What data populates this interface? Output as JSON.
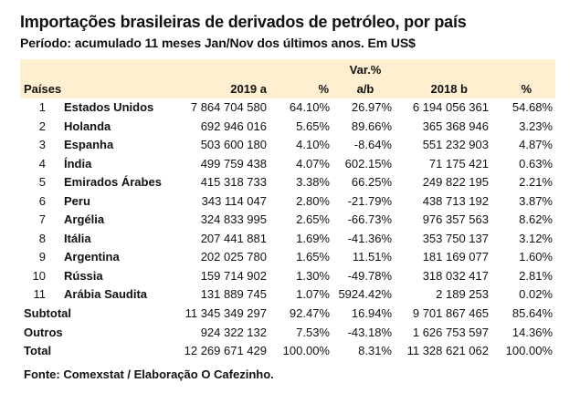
{
  "title": "Importações brasileiras de derivados de petróleo, por país",
  "subtitle": "Período: acumulado 11 meses Jan/Nov dos últimos anos. Em US$",
  "header_color": "#fdefcf",
  "columns": {
    "country": "Países",
    "y2019": "2019 a",
    "pct2019": "%",
    "var_top": "Var.%",
    "var_bottom": "a/b",
    "y2018": "2018 b",
    "pct2018": "%"
  },
  "rows": [
    {
      "rank": "1",
      "country": "Estados Unidos",
      "y2019": "7 864 704 580",
      "pct2019": "64.10%",
      "var": "26.97%",
      "y2018": "6 194 056 361",
      "pct2018": "54.68%"
    },
    {
      "rank": "2",
      "country": "Holanda",
      "y2019": "692 946 016",
      "pct2019": "5.65%",
      "var": "89.66%",
      "y2018": "365 368 946",
      "pct2018": "3.23%"
    },
    {
      "rank": "3",
      "country": "Espanha",
      "y2019": "503 600 180",
      "pct2019": "4.10%",
      "var": "-8.64%",
      "y2018": "551 232 903",
      "pct2018": "4.87%"
    },
    {
      "rank": "4",
      "country": "Índia",
      "y2019": "499 759 438",
      "pct2019": "4.07%",
      "var": "602.15%",
      "y2018": "71 175 421",
      "pct2018": "0.63%"
    },
    {
      "rank": "5",
      "country": "Emirados Árabes",
      "y2019": "415 318 733",
      "pct2019": "3.38%",
      "var": "66.25%",
      "y2018": "249 822 195",
      "pct2018": "2.21%"
    },
    {
      "rank": "6",
      "country": "Peru",
      "y2019": "343 114 047",
      "pct2019": "2.80%",
      "var": "-21.79%",
      "y2018": "438 713 192",
      "pct2018": "3.87%"
    },
    {
      "rank": "7",
      "country": "Argélia",
      "y2019": "324 833 995",
      "pct2019": "2.65%",
      "var": "-66.73%",
      "y2018": "976 357 563",
      "pct2018": "8.62%"
    },
    {
      "rank": "8",
      "country": "Itália",
      "y2019": "207 441 881",
      "pct2019": "1.69%",
      "var": "-41.36%",
      "y2018": "353 750 137",
      "pct2018": "3.12%"
    },
    {
      "rank": "9",
      "country": "Argentina",
      "y2019": "202 025 780",
      "pct2019": "1.65%",
      "var": "11.51%",
      "y2018": "181 169 077",
      "pct2018": "1.60%"
    },
    {
      "rank": "10",
      "country": "Rússia",
      "y2019": "159 714 902",
      "pct2019": "1.30%",
      "var": "-49.78%",
      "y2018": "318 032 417",
      "pct2018": "2.81%"
    },
    {
      "rank": "11",
      "country": "Arábia Saudita",
      "y2019": "131 889 745",
      "pct2019": "1.07%",
      "var": "5924.42%",
      "y2018": "2 189 253",
      "pct2018": "0.02%"
    }
  ],
  "totals": [
    {
      "label": "Subtotal",
      "y2019": "11 345 349 297",
      "pct2019": "92.47%",
      "var": "16.94%",
      "y2018": "9 701 867 465",
      "pct2018": "85.64%"
    },
    {
      "label": "Outros",
      "y2019": "924 322 132",
      "pct2019": "7.53%",
      "var": "-43.18%",
      "y2018": "1 626 753 597",
      "pct2018": "14.36%"
    },
    {
      "label": "Total",
      "y2019": "12 269 671 429",
      "pct2019": "100.00%",
      "var": "8.31%",
      "y2018": "11 328 621 062",
      "pct2018": "100.00%"
    }
  ],
  "source": "Fonte: Comexstat / Elaboração O Cafezinho."
}
